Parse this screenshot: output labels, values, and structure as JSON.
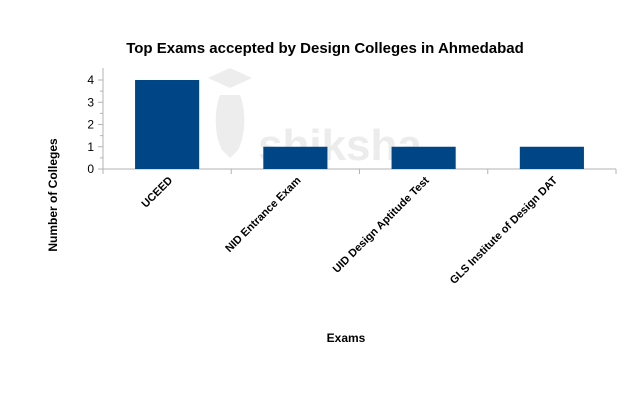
{
  "watermark": {
    "text": "shiksha",
    "icon": "graduate-icon"
  },
  "chart_data": {
    "type": "bar",
    "title": "Top Exams accepted by Design Colleges in Ahmedabad",
    "xlabel": "Exams",
    "ylabel": "Number of Colleges",
    "categories": [
      "UCEED",
      "NID Entrance Exam",
      "UID Design Aptitude Test",
      "GLS Institute of Design DAT"
    ],
    "values": [
      4,
      1,
      1,
      1
    ],
    "ylim": [
      0,
      4
    ],
    "yticks": [
      "0",
      "1",
      "2",
      "3",
      "4"
    ],
    "bar_color": "#004586",
    "grid": false,
    "legend": "none"
  }
}
